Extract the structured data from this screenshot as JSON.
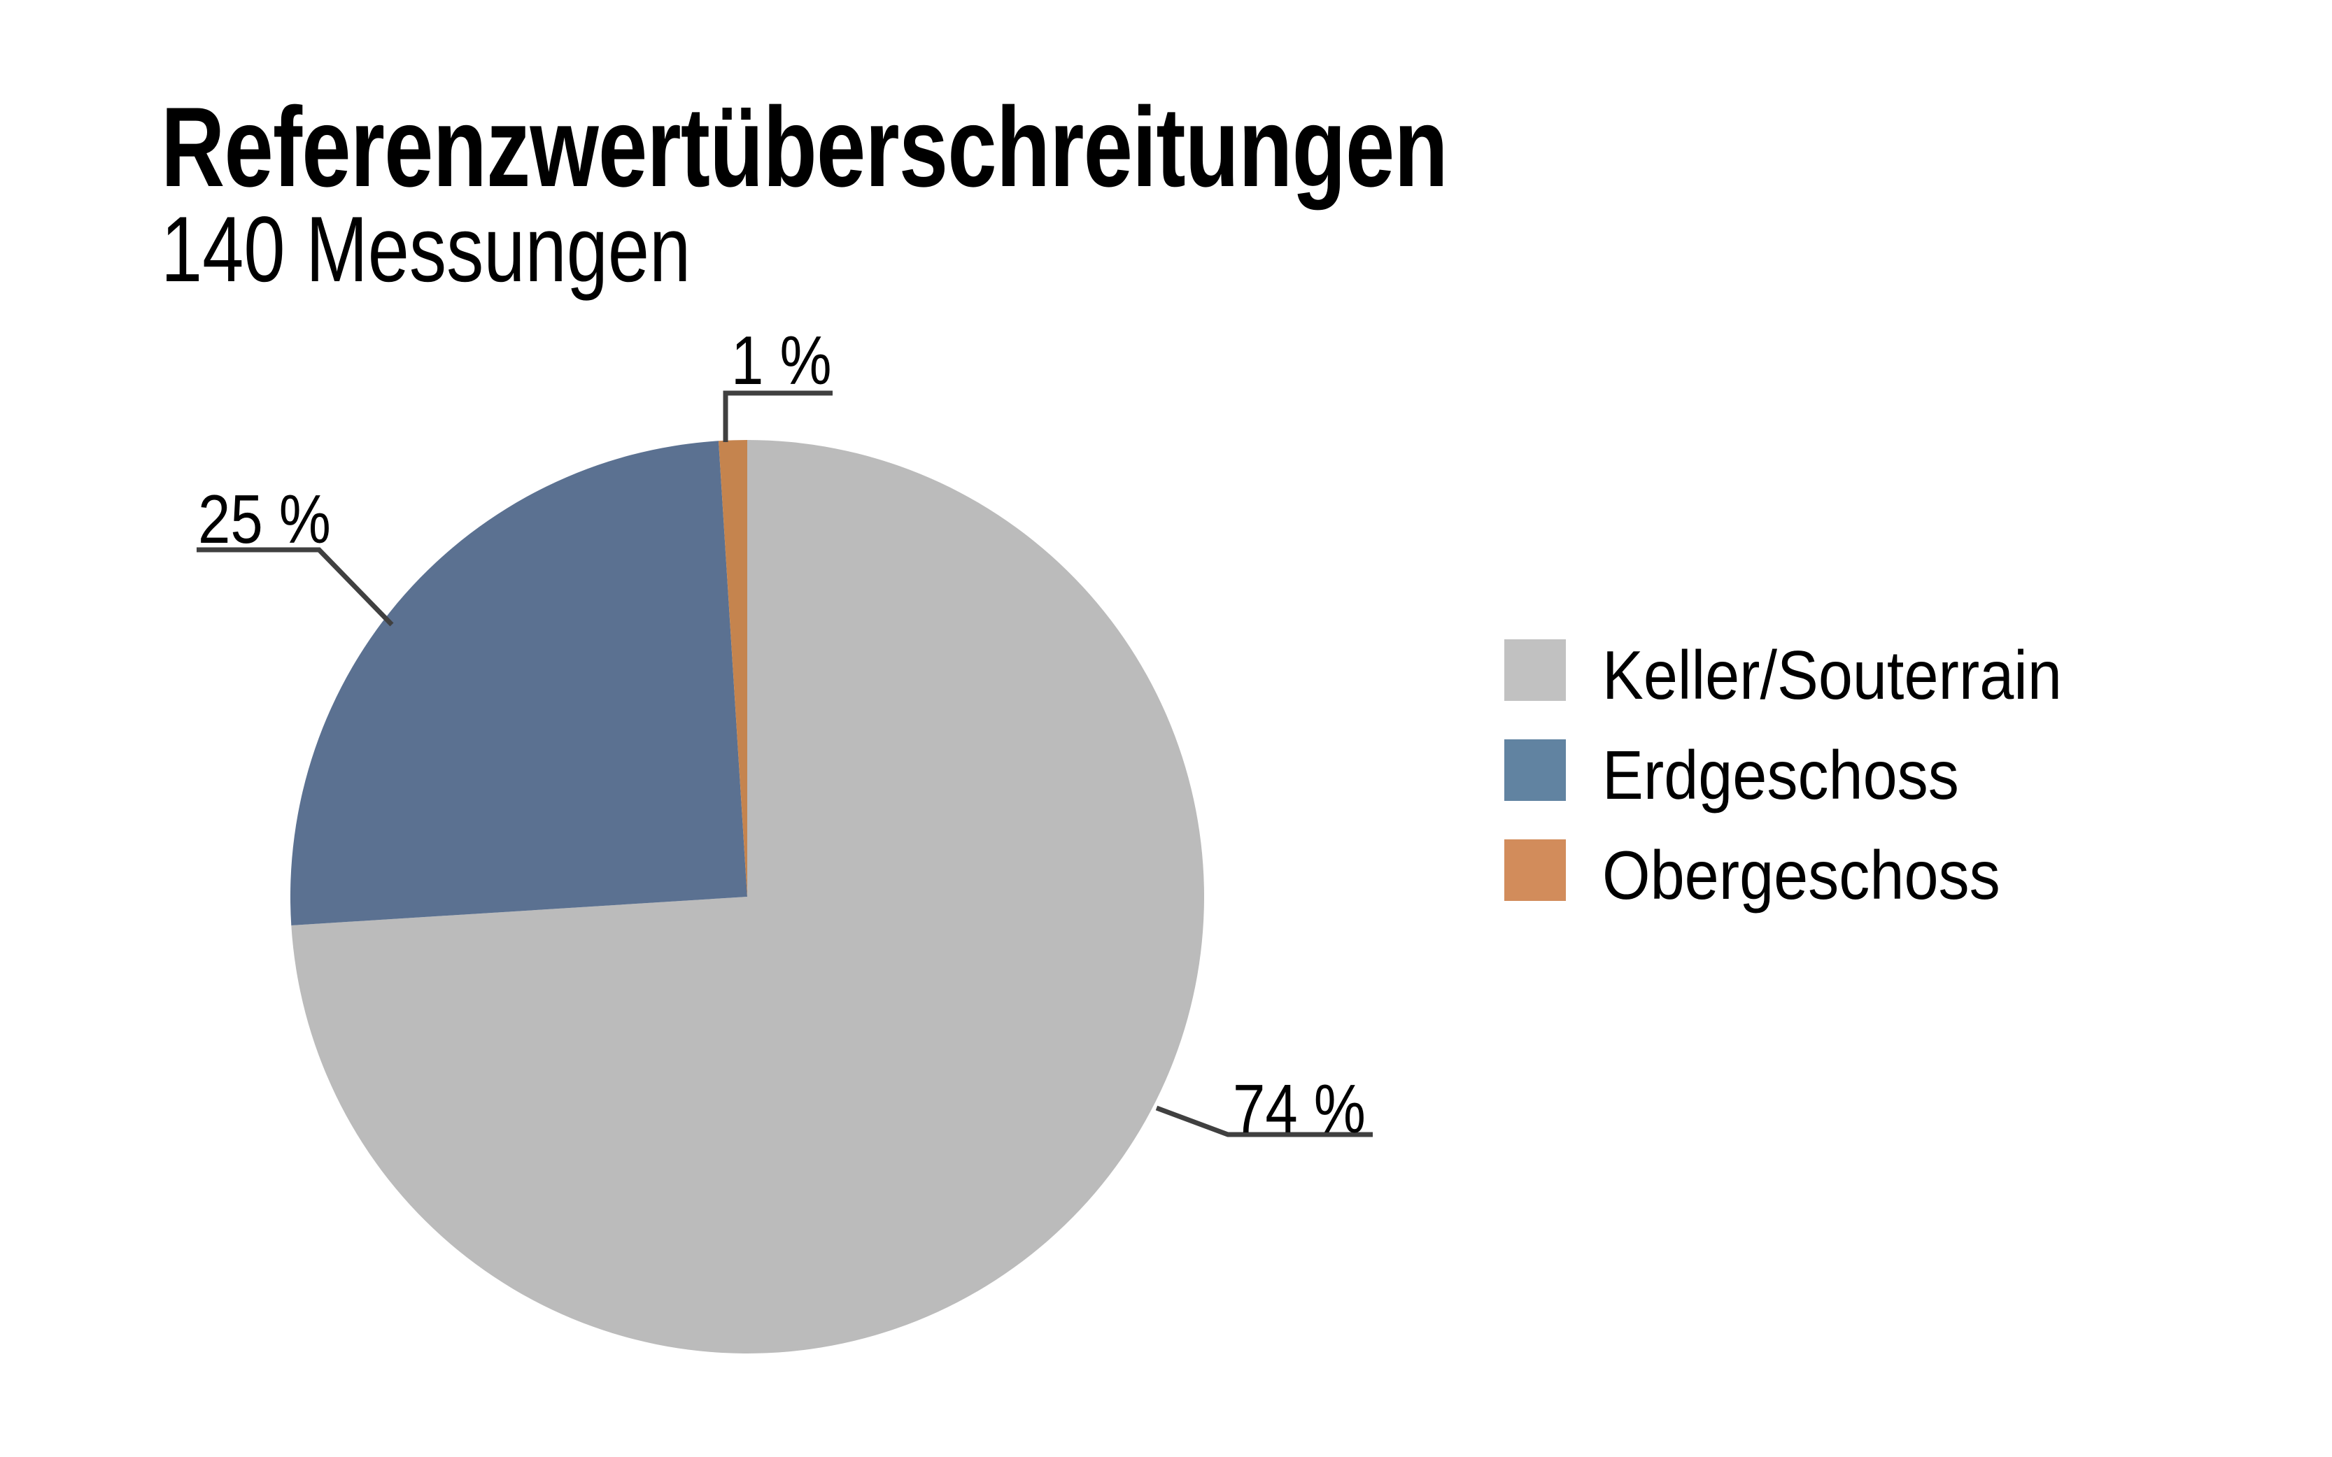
{
  "chart_data": {
    "type": "pie",
    "title": "Referenzwertüberschreitungen",
    "subtitle": "140 Messungen",
    "categories": [
      "Keller/Souterrain",
      "Erdgeschoss",
      "Obergeschoss"
    ],
    "values": [
      74,
      25,
      1
    ],
    "unit": "%",
    "total_measurements": 140,
    "colors": [
      "#BBBBBB",
      "#5B7191",
      "#C5844E"
    ],
    "start_angle_deg": 0,
    "direction": "clockwise",
    "legend_position": "right",
    "grid": false,
    "callouts": [
      {
        "text": "74 %",
        "value": 74,
        "category": "Keller/Souterrain"
      },
      {
        "text": "25 %",
        "value": 25,
        "category": "Erdgeschoss"
      },
      {
        "text": "1 %",
        "value": 1,
        "category": "Obergeschoss"
      }
    ]
  },
  "legend": {
    "items": [
      {
        "label": "Keller/Souterrain",
        "color": "#C1C1C1"
      },
      {
        "label": "Erdgeschoss",
        "color": "#6183A1"
      },
      {
        "label": "Obergeschoss",
        "color": "#D28C5B"
      }
    ]
  },
  "style_colors": {
    "leader_line": "#404040",
    "text": "#000000",
    "background": "#FFFFFF"
  }
}
